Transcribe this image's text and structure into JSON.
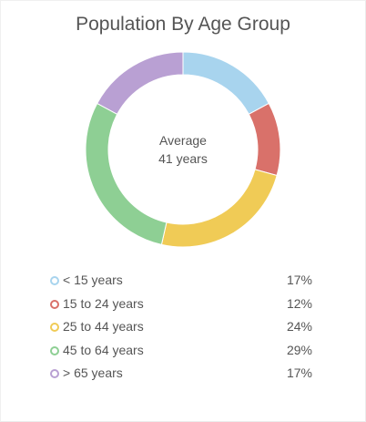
{
  "chart_data": {
    "type": "pie",
    "title": "Population By Age Group",
    "center_label_line1": "Average",
    "center_label_line2": "41 years",
    "categories": [
      "< 15 years",
      "15 to 24 years",
      "25 to 44 years",
      "45 to 64 years",
      "> 65 years"
    ],
    "values": [
      17,
      12,
      24,
      29,
      17
    ],
    "value_labels": [
      "17%",
      "12%",
      "24%",
      "29%",
      "17%"
    ],
    "colors": [
      "#a8d4ee",
      "#d9716a",
      "#f0cb56",
      "#8ecf94",
      "#b9a0d3"
    ],
    "legend_position": "bottom"
  }
}
